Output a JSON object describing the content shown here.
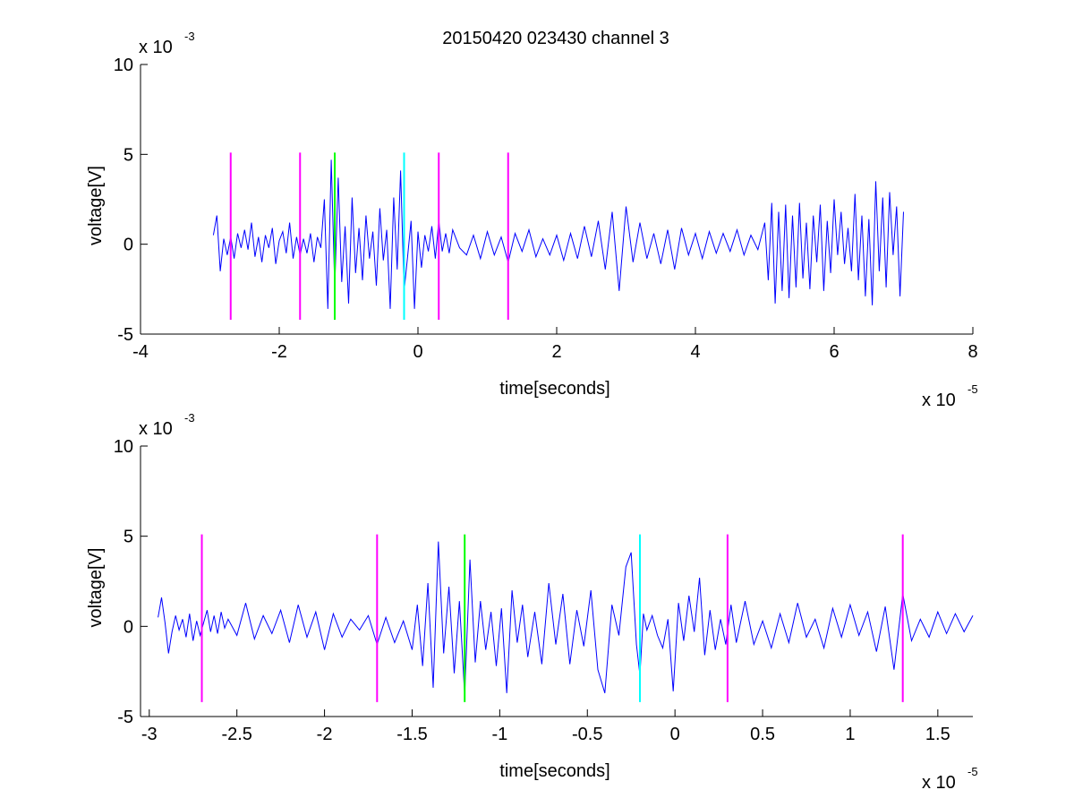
{
  "figure": {
    "title": "20150420 023430 channel 3"
  },
  "chart_data": [
    {
      "type": "line",
      "xlabel": "time[seconds]",
      "ylabel": "voltage[V]",
      "x_exponent_label": "x 10",
      "x_exponent": "-5",
      "y_exponent_label": "x 10",
      "y_exponent": "-3",
      "xlim": [
        -4,
        8
      ],
      "ylim": [
        -5,
        10
      ],
      "x_ticks": [
        -4,
        -2,
        0,
        2,
        4,
        6,
        8
      ],
      "x_tick_labels": [
        "-4",
        "-2",
        "0",
        "2",
        "4",
        "6",
        "8"
      ],
      "y_ticks": [
        -5,
        0,
        5,
        10
      ],
      "y_tick_labels": [
        "-5",
        "0",
        "5",
        "10"
      ],
      "grid": false,
      "series": [
        {
          "color": "#0000ff",
          "x": [
            -2.95,
            -2.9,
            -2.85,
            -2.8,
            -2.75,
            -2.7,
            -2.65,
            -2.6,
            -2.55,
            -2.5,
            -2.45,
            -2.4,
            -2.35,
            -2.3,
            -2.25,
            -2.2,
            -2.15,
            -2.1,
            -2.05,
            -2.0,
            -1.95,
            -1.9,
            -1.85,
            -1.8,
            -1.75,
            -1.7,
            -1.65,
            -1.6,
            -1.55,
            -1.5,
            -1.45,
            -1.4,
            -1.35,
            -1.3,
            -1.25,
            -1.2,
            -1.15,
            -1.1,
            -1.05,
            -1.0,
            -0.95,
            -0.9,
            -0.85,
            -0.8,
            -0.75,
            -0.7,
            -0.65,
            -0.6,
            -0.55,
            -0.5,
            -0.45,
            -0.4,
            -0.35,
            -0.3,
            -0.25,
            -0.2,
            -0.15,
            -0.1,
            -0.05,
            0.0,
            0.05,
            0.1,
            0.15,
            0.2,
            0.25,
            0.3,
            0.35,
            0.4,
            0.45,
            0.5,
            0.6,
            0.7,
            0.8,
            0.9,
            1.0,
            1.1,
            1.2,
            1.3,
            1.4,
            1.5,
            1.6,
            1.7,
            1.8,
            1.9,
            2.0,
            2.1,
            2.2,
            2.3,
            2.4,
            2.5,
            2.6,
            2.7,
            2.8,
            2.9,
            3.0,
            3.1,
            3.2,
            3.3,
            3.4,
            3.5,
            3.6,
            3.7,
            3.8,
            3.9,
            4.0,
            4.1,
            4.2,
            4.3,
            4.4,
            4.5,
            4.6,
            4.7,
            4.8,
            4.9,
            5.0,
            5.05,
            5.1,
            5.15,
            5.2,
            5.25,
            5.3,
            5.35,
            5.4,
            5.45,
            5.5,
            5.55,
            5.6,
            5.65,
            5.7,
            5.75,
            5.8,
            5.85,
            5.9,
            5.95,
            6.0,
            6.05,
            6.1,
            6.15,
            6.2,
            6.25,
            6.3,
            6.35,
            6.4,
            6.45,
            6.5,
            6.55,
            6.6,
            6.65,
            6.7,
            6.75,
            6.8,
            6.85,
            6.9,
            6.95,
            7.0
          ],
          "y": [
            0.5,
            1.6,
            -1.5,
            0.3,
            -0.6,
            0.4,
            -0.8,
            0.6,
            -0.2,
            0.8,
            -0.3,
            1.2,
            -0.7,
            0.4,
            -1.0,
            0.5,
            -0.2,
            0.9,
            -1.1,
            0.2,
            0.7,
            -0.5,
            1.2,
            -0.8,
            0.4,
            -0.6,
            0.3,
            -0.5,
            0.6,
            -1.0,
            0.4,
            -0.2,
            2.5,
            -3.6,
            4.7,
            -2.4,
            3.7,
            -2.1,
            1.0,
            -3.3,
            2.6,
            -1.6,
            0.9,
            -2.0,
            1.6,
            -0.8,
            0.7,
            -2.3,
            2.0,
            -0.9,
            0.8,
            -3.6,
            2.6,
            -1.4,
            4.1,
            -2.6,
            -0.7,
            1.3,
            -3.6,
            0.7,
            -1.3,
            0.5,
            -0.4,
            1.0,
            -0.8,
            1.3,
            -0.4,
            0.6,
            -0.5,
            0.8,
            -0.2,
            -0.6,
            0.5,
            -0.8,
            0.7,
            -0.6,
            0.4,
            -1.0,
            0.6,
            -0.4,
            0.8,
            -0.7,
            0.3,
            -0.6,
            0.5,
            -0.9,
            0.6,
            -0.8,
            1.0,
            -0.7,
            1.3,
            -1.4,
            1.8,
            -2.6,
            2.1,
            -1.0,
            1.2,
            -0.8,
            0.6,
            -1.1,
            0.8,
            -1.4,
            0.9,
            -0.6,
            0.6,
            -0.8,
            0.7,
            -0.5,
            0.6,
            -0.4,
            0.8,
            -0.6,
            0.5,
            -0.3,
            1.2,
            -2.0,
            2.3,
            -3.3,
            1.8,
            -2.6,
            2.2,
            -3.0,
            1.6,
            -2.4,
            2.3,
            -1.9,
            1.2,
            -2.5,
            1.6,
            -1.0,
            2.2,
            -2.6,
            1.3,
            -1.6,
            2.5,
            -0.6,
            1.8,
            -1.1,
            0.9,
            -1.5,
            2.8,
            -2.0,
            1.6,
            -2.9,
            1.4,
            -3.4,
            3.5,
            -1.5,
            2.6,
            -2.4,
            2.9,
            -0.6,
            2.1,
            -2.9,
            1.8
          ]
        }
      ],
      "markers": [
        {
          "x": -2.7,
          "y_range": [
            -4.2,
            5.1
          ],
          "color": "#ff00ff"
        },
        {
          "x": -1.7,
          "y_range": [
            -4.2,
            5.1
          ],
          "color": "#ff00ff"
        },
        {
          "x": -1.2,
          "y_range": [
            -4.2,
            5.1
          ],
          "color": "#00ff00"
        },
        {
          "x": -0.2,
          "y_range": [
            -4.2,
            5.1
          ],
          "color": "#00ffff"
        },
        {
          "x": 0.3,
          "y_range": [
            -4.2,
            5.1
          ],
          "color": "#ff00ff"
        },
        {
          "x": 1.3,
          "y_range": [
            -4.2,
            5.1
          ],
          "color": "#ff00ff"
        }
      ]
    },
    {
      "type": "line",
      "xlabel": "time[seconds]",
      "ylabel": "voltage[V]",
      "x_exponent_label": "x 10",
      "x_exponent": "-5",
      "y_exponent_label": "x 10",
      "y_exponent": "-3",
      "xlim": [
        -3.05,
        1.7
      ],
      "ylim": [
        -5,
        10
      ],
      "x_ticks": [
        -3,
        -2.5,
        -2,
        -1.5,
        -1,
        -0.5,
        0,
        0.5,
        1,
        1.5
      ],
      "x_tick_labels": [
        "-3",
        "-2.5",
        "-2",
        "-1.5",
        "-1",
        "-0.5",
        "0",
        "0.5",
        "1",
        "1.5"
      ],
      "y_ticks": [
        -5,
        0,
        5,
        10
      ],
      "y_tick_labels": [
        "-5",
        "0",
        "5",
        "10"
      ],
      "grid": false,
      "series": [
        {
          "color": "#0000ff",
          "x": [
            -2.95,
            -2.93,
            -2.91,
            -2.89,
            -2.87,
            -2.85,
            -2.83,
            -2.81,
            -2.79,
            -2.77,
            -2.75,
            -2.73,
            -2.71,
            -2.69,
            -2.67,
            -2.65,
            -2.63,
            -2.61,
            -2.59,
            -2.57,
            -2.55,
            -2.5,
            -2.45,
            -2.4,
            -2.35,
            -2.3,
            -2.25,
            -2.2,
            -2.15,
            -2.1,
            -2.05,
            -2.0,
            -1.95,
            -1.9,
            -1.85,
            -1.8,
            -1.75,
            -1.7,
            -1.65,
            -1.6,
            -1.55,
            -1.5,
            -1.47,
            -1.44,
            -1.41,
            -1.38,
            -1.35,
            -1.32,
            -1.29,
            -1.26,
            -1.23,
            -1.2,
            -1.17,
            -1.14,
            -1.11,
            -1.08,
            -1.05,
            -1.02,
            -0.99,
            -0.96,
            -0.93,
            -0.9,
            -0.87,
            -0.84,
            -0.8,
            -0.76,
            -0.72,
            -0.68,
            -0.64,
            -0.6,
            -0.56,
            -0.52,
            -0.48,
            -0.44,
            -0.4,
            -0.36,
            -0.32,
            -0.28,
            -0.25,
            -0.22,
            -0.2,
            -0.18,
            -0.16,
            -0.13,
            -0.1,
            -0.07,
            -0.04,
            -0.01,
            0.02,
            0.05,
            0.08,
            0.11,
            0.14,
            0.17,
            0.2,
            0.23,
            0.26,
            0.29,
            0.32,
            0.35,
            0.4,
            0.45,
            0.5,
            0.55,
            0.6,
            0.65,
            0.7,
            0.75,
            0.8,
            0.85,
            0.9,
            0.95,
            1.0,
            1.05,
            1.1,
            1.15,
            1.2,
            1.25,
            1.3,
            1.35,
            1.4,
            1.45,
            1.5,
            1.55,
            1.6,
            1.65,
            1.7
          ],
          "y": [
            0.5,
            1.6,
            0.2,
            -1.5,
            -0.3,
            0.6,
            -0.2,
            0.4,
            -0.6,
            0.7,
            -0.8,
            0.3,
            -0.5,
            0.2,
            0.9,
            -0.3,
            0.6,
            -0.4,
            0.8,
            -0.1,
            0.4,
            -0.5,
            1.3,
            -0.7,
            0.6,
            -0.4,
            0.9,
            -0.9,
            1.2,
            -0.6,
            0.8,
            -1.3,
            0.7,
            -0.6,
            0.4,
            -0.2,
            0.6,
            -1.0,
            0.5,
            -0.9,
            0.3,
            -1.3,
            1.2,
            -2.2,
            2.4,
            -3.4,
            4.7,
            -1.5,
            2.2,
            -2.6,
            1.4,
            -3.8,
            3.7,
            -2.0,
            1.4,
            -1.3,
            0.8,
            -2.2,
            1.0,
            -3.7,
            2.0,
            -0.9,
            1.2,
            -1.7,
            0.8,
            -2.1,
            2.4,
            -1.0,
            1.8,
            -2.1,
            0.9,
            -1.1,
            2.0,
            -2.4,
            -3.7,
            1.2,
            -0.5,
            3.3,
            4.1,
            -1.0,
            -2.7,
            0.7,
            -0.2,
            0.6,
            -0.5,
            -1.2,
            0.4,
            -3.6,
            1.3,
            -0.8,
            1.7,
            -0.3,
            2.7,
            -1.6,
            0.9,
            -1.3,
            0.4,
            -1.0,
            1.2,
            -0.9,
            1.4,
            -1.0,
            0.3,
            -1.2,
            0.7,
            -0.9,
            1.3,
            -0.6,
            0.4,
            -1.2,
            1.0,
            -0.6,
            1.2,
            -0.5,
            0.8,
            -1.4,
            1.1,
            -2.4,
            1.8,
            -0.8,
            0.4,
            -0.6,
            0.8,
            -0.4,
            0.7,
            -0.3,
            0.6
          ]
        }
      ],
      "markers": [
        {
          "x": -2.7,
          "y_range": [
            -4.2,
            5.1
          ],
          "color": "#ff00ff"
        },
        {
          "x": -1.7,
          "y_range": [
            -4.2,
            5.1
          ],
          "color": "#ff00ff"
        },
        {
          "x": -1.2,
          "y_range": [
            -4.2,
            5.1
          ],
          "color": "#00ff00"
        },
        {
          "x": -0.2,
          "y_range": [
            -4.2,
            5.1
          ],
          "color": "#00ffff"
        },
        {
          "x": 0.3,
          "y_range": [
            -4.2,
            5.1
          ],
          "color": "#ff00ff"
        },
        {
          "x": 1.3,
          "y_range": [
            -4.2,
            5.1
          ],
          "color": "#ff00ff"
        }
      ]
    }
  ]
}
